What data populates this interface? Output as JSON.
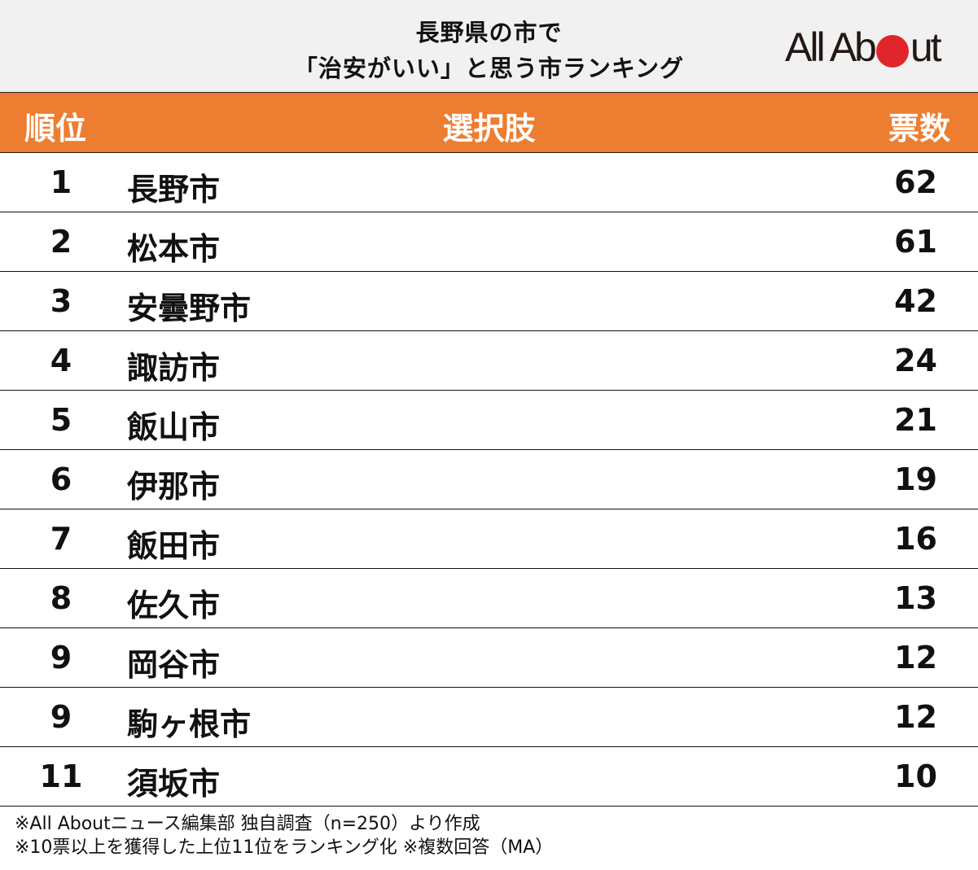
{
  "header": {
    "title_line1": "長野県の市で",
    "title_line2": "「治安がいい」と思う市ランキング",
    "logo": {
      "text_before": "All Ab",
      "text_after": "ut",
      "dot_color": "#e0262b"
    }
  },
  "table": {
    "columns": {
      "rank": "順位",
      "choice": "選択肢",
      "votes": "票数"
    },
    "header_color": "#ed7d31",
    "rows": [
      {
        "rank": "1",
        "name": "長野市",
        "votes": "62"
      },
      {
        "rank": "2",
        "name": "松本市",
        "votes": "61"
      },
      {
        "rank": "3",
        "name": "安曇野市",
        "votes": "42"
      },
      {
        "rank": "4",
        "name": "諏訪市",
        "votes": "24"
      },
      {
        "rank": "5",
        "name": "飯山市",
        "votes": "21"
      },
      {
        "rank": "6",
        "name": "伊那市",
        "votes": "19"
      },
      {
        "rank": "7",
        "name": "飯田市",
        "votes": "16"
      },
      {
        "rank": "8",
        "name": "佐久市",
        "votes": "13"
      },
      {
        "rank": "9",
        "name": "岡谷市",
        "votes": "12"
      },
      {
        "rank": "9",
        "name": "駒ヶ根市",
        "votes": "12"
      },
      {
        "rank": "11",
        "name": "須坂市",
        "votes": "10"
      }
    ]
  },
  "footer": {
    "note1": "※All Aboutニュース編集部 独自調査（n=250）より作成",
    "note2": "※10票以上を獲得した上位11位をランキング化 ※複数回答（MA）"
  }
}
